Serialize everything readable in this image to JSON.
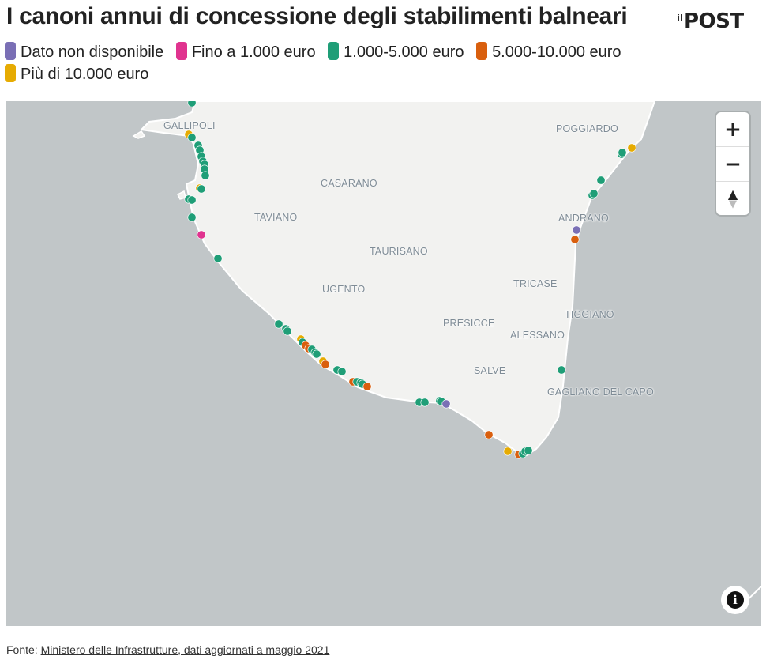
{
  "title": "I canoni annui di concessione degli stabilimenti balneari",
  "logo": {
    "prefix": "il",
    "brand": "POST"
  },
  "legend": [
    {
      "label": "Dato non disponibile",
      "color": "#7a6fb5"
    },
    {
      "label": "Fino a 1.000 euro",
      "color": "#e0338f"
    },
    {
      "label": "1.000-5.000 euro",
      "color": "#1f9e77"
    },
    {
      "label": "5.000-10.000 euro",
      "color": "#d95f0e"
    },
    {
      "label": "Più di 10.000 euro",
      "color": "#e6ab02"
    }
  ],
  "places": [
    {
      "name": "GALLIPOLI"
    },
    {
      "name": "POGGIARDO"
    },
    {
      "name": "CASARANO"
    },
    {
      "name": "TAVIANO"
    },
    {
      "name": "ANDRANO"
    },
    {
      "name": "TAURISANO"
    },
    {
      "name": "TRICASE"
    },
    {
      "name": "UGENTO"
    },
    {
      "name": "TIGGIANO"
    },
    {
      "name": "PRESICCE"
    },
    {
      "name": "ALESSANO"
    },
    {
      "name": "SALVE"
    },
    {
      "name": "GAGLIANO DEL CAPO"
    }
  ],
  "controls": {
    "zoom_in": "+",
    "zoom_out": "−",
    "compass": "▲",
    "info": "i"
  },
  "source": {
    "prefix": "Fonte: ",
    "link": "Ministero delle Infrastrutture, dati aggiornati a maggio 2021"
  }
}
